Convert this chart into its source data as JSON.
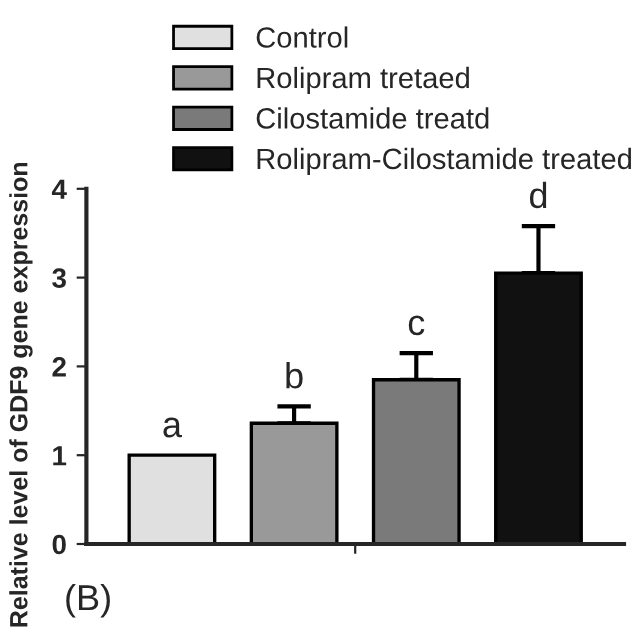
{
  "chart_data": {
    "type": "bar",
    "categories": [
      null
    ],
    "ylabel": "Relative level of GDF9 gene expression",
    "series": [
      {
        "name": "Control",
        "color": "#e0e0e0",
        "values": [
          1.0
        ],
        "errors": [
          null
        ]
      },
      {
        "name": "Rolipram tretaed",
        "color": "#999999",
        "values": [
          1.36
        ],
        "errors": [
          [
            1.36,
            1.55
          ]
        ]
      },
      {
        "name": "Cilostamide treatd",
        "color": "#7a7a7a",
        "values": [
          1.85
        ],
        "errors": [
          [
            1.85,
            2.15
          ]
        ]
      },
      {
        "name": "Rolipram-Cilostamide treated",
        "color": "#111111",
        "values": [
          3.05
        ],
        "errors": [
          [
            3.05,
            3.58
          ]
        ]
      }
    ],
    "ylim": [
      0,
      4
    ],
    "yticks": [
      0,
      1,
      2,
      3,
      4
    ],
    "grid": false,
    "legend": "top",
    "annotations": [
      "a",
      "b",
      "c",
      "d",
      "(B)"
    ]
  }
}
